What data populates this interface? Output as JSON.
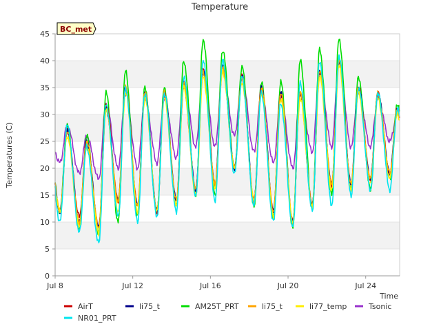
{
  "chart_data": {
    "type": "line",
    "title": "Temperature",
    "xlabel": "Time",
    "ylabel": "Temperatures (C)",
    "site_label": "BC_met",
    "ylim": [
      0,
      45
    ],
    "yticks": [
      0,
      5,
      10,
      15,
      20,
      25,
      30,
      35,
      40,
      45
    ],
    "xlim": [
      "2024-07-08",
      "2024-07-25T18:00"
    ],
    "xticks": [
      {
        "date": "2024-07-08",
        "label": "Jul 8"
      },
      {
        "date": "2024-07-12",
        "label": "Jul 12"
      },
      {
        "date": "2024-07-16",
        "label": "Jul 16"
      },
      {
        "date": "2024-07-20",
        "label": "Jul 20"
      },
      {
        "date": "2024-07-24",
        "label": "Jul 24"
      }
    ],
    "grid": "horizontal bands",
    "legend_position": "bottom",
    "days": [
      "Jul 8",
      "Jul 9",
      "Jul 10",
      "Jul 11",
      "Jul 12",
      "Jul 13",
      "Jul 14",
      "Jul 15",
      "Jul 16",
      "Jul 17",
      "Jul 18",
      "Jul 19",
      "Jul 20",
      "Jul 21",
      "Jul 22",
      "Jul 23",
      "Jul 24",
      "Jul 25"
    ],
    "series": [
      {
        "name": "AirT",
        "color": "#cc0000",
        "daily_min": [
          12,
          11,
          9,
          14,
          13,
          12,
          14,
          16,
          17,
          20,
          14,
          12,
          10,
          13,
          17,
          17,
          18,
          19
        ],
        "daily_max": [
          27,
          25,
          32,
          35,
          34,
          34,
          35,
          38,
          39,
          37,
          35,
          34,
          34,
          38,
          40,
          35,
          34,
          31
        ]
      },
      {
        "name": "NR01_PRT",
        "color": "#00e5ee",
        "daily_min": [
          10,
          8,
          6,
          11,
          10,
          11,
          12,
          15,
          14,
          19,
          13,
          10,
          9,
          12,
          13,
          15,
          16,
          16
        ],
        "daily_max": [
          28,
          24,
          32,
          35,
          34,
          34,
          37,
          40,
          40,
          37,
          34,
          32,
          36,
          40,
          41,
          35,
          34,
          31
        ]
      },
      {
        "name": "li75_t",
        "color": "#00008b",
        "daily_min": [
          12,
          10,
          9,
          14,
          13,
          12,
          14,
          16,
          17,
          20,
          14,
          12,
          10,
          13,
          17,
          17,
          18,
          19
        ],
        "daily_max": [
          27,
          25,
          31,
          35,
          34,
          34,
          36,
          38,
          39,
          37,
          35,
          34,
          34,
          38,
          40,
          35,
          34,
          31
        ]
      },
      {
        "name": "AM25T_PRT",
        "color": "#00dd00",
        "daily_min": [
          12,
          9,
          8,
          10,
          11,
          12,
          13,
          15,
          15,
          20,
          13,
          11,
          9,
          13,
          15,
          16,
          16,
          18
        ],
        "daily_max": [
          28,
          26,
          34,
          38,
          35,
          35,
          40,
          44,
          42,
          39,
          36,
          36,
          40,
          42,
          44,
          37,
          34,
          32
        ]
      },
      {
        "name": "li75_t",
        "color": "#ffa500",
        "daily_min": [
          12,
          10,
          9,
          14,
          13,
          12,
          14,
          16,
          17,
          20,
          14,
          12,
          10,
          13,
          17,
          17,
          18,
          19
        ],
        "daily_max": [
          27,
          25,
          31,
          35,
          34,
          34,
          36,
          38,
          39,
          37,
          35,
          34,
          34,
          38,
          40,
          35,
          34,
          31
        ]
      },
      {
        "name": "li77_temp",
        "color": "#ffee00",
        "daily_min": [
          12,
          9,
          8,
          12,
          12,
          12,
          13,
          15,
          16,
          20,
          14,
          11,
          10,
          13,
          16,
          16,
          17,
          18
        ],
        "daily_max": [
          26,
          24,
          31,
          34,
          33,
          33,
          35,
          37,
          38,
          36,
          34,
          33,
          33,
          37,
          39,
          34,
          33,
          30
        ]
      },
      {
        "name": "Tsonic",
        "color": "#9932cc",
        "daily_min": [
          21,
          19,
          18,
          20,
          20,
          21,
          22,
          24,
          24,
          26,
          23,
          21,
          20,
          23,
          24,
          24,
          24,
          25
        ],
        "daily_max": [
          28,
          26,
          32,
          34,
          33,
          33,
          36,
          38,
          38,
          37,
          34,
          33,
          34,
          38,
          40,
          34,
          33,
          30
        ]
      }
    ]
  }
}
